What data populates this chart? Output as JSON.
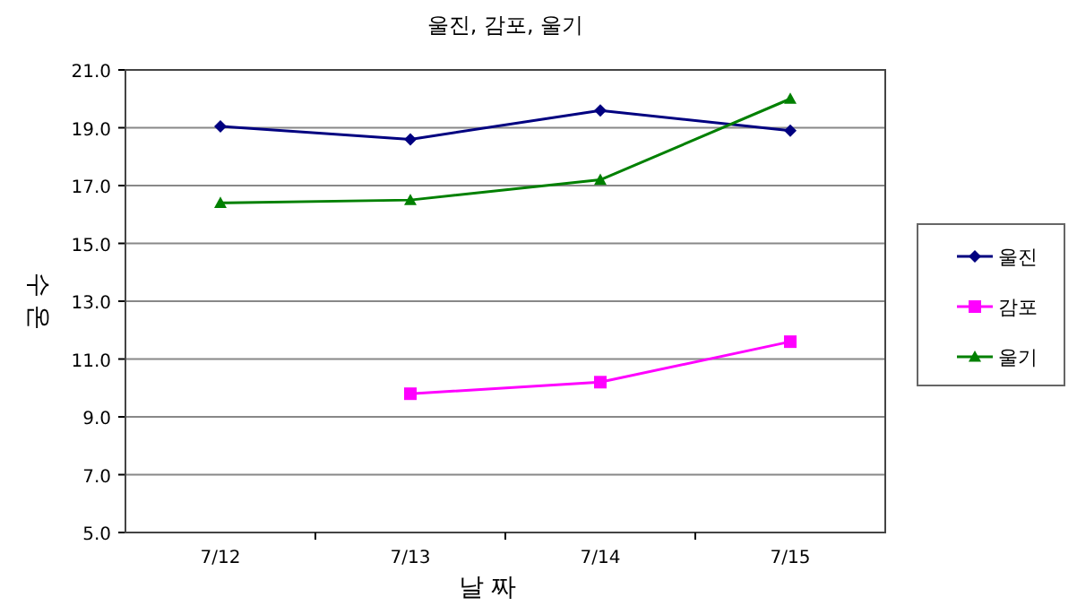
{
  "chart_data": {
    "type": "line",
    "title": "울진, 감포, 울기",
    "xlabel": "날 짜",
    "ylabel": "수 온",
    "categories": [
      "7/12",
      "7/13",
      "7/14",
      "7/15"
    ],
    "series": [
      {
        "name": "울진",
        "color": "#000080",
        "marker": "diamond",
        "values": [
          19.05,
          18.6,
          19.6,
          18.9
        ]
      },
      {
        "name": "감포",
        "color": "#ff00ff",
        "marker": "square",
        "values": [
          null,
          9.8,
          10.2,
          11.6
        ]
      },
      {
        "name": "울기",
        "color": "#008000",
        "marker": "triangle",
        "values": [
          16.4,
          16.5,
          17.2,
          20.0
        ]
      }
    ],
    "ylim": [
      5,
      21
    ],
    "yticks": [
      {
        "value": 5,
        "label": "5.0"
      },
      {
        "value": 7,
        "label": "7.0"
      },
      {
        "value": 9,
        "label": "9.0"
      },
      {
        "value": 11,
        "label": "11.0"
      },
      {
        "value": 13,
        "label": "13.0"
      },
      {
        "value": 15,
        "label": "15.0"
      },
      {
        "value": 17,
        "label": "17.0"
      },
      {
        "value": 19,
        "label": "19.0"
      },
      {
        "value": 21,
        "label": "21.0"
      }
    ],
    "grid": "y",
    "legend": "right"
  }
}
